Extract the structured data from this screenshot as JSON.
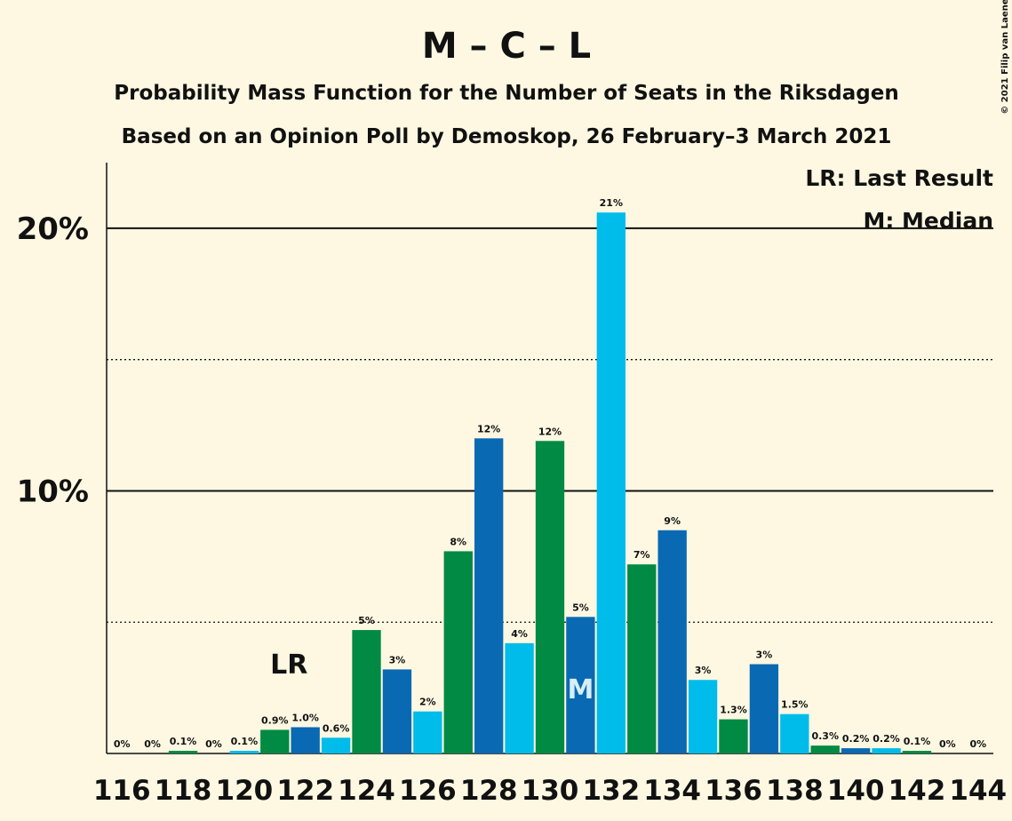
{
  "chart_data": {
    "type": "bar",
    "title": "M – C – L",
    "subtitle": "Probability Mass Function for the Number of Seats in the Riksdagen",
    "subtitle2": "Based on an Opinion Poll by Demoskop, 26 February–3 March 2021",
    "copyright": "© 2021 Filip van Laenen",
    "categories": [
      "116",
      null,
      "118",
      null,
      "120",
      null,
      "122",
      null,
      "124",
      null,
      "126",
      null,
      "128",
      null,
      "130",
      null,
      "132",
      null,
      "134",
      null,
      "136",
      null,
      "138",
      null,
      "140",
      null,
      "142",
      null,
      "144"
    ],
    "values": [
      0,
      0,
      0.1,
      0,
      0.1,
      0.9,
      1.0,
      0.6,
      4.7,
      3.2,
      1.6,
      7.7,
      12.0,
      4.2,
      11.9,
      5.2,
      20.6,
      7.2,
      8.5,
      2.8,
      1.3,
      3.4,
      1.5,
      0.3,
      0.2,
      0.2,
      0.1,
      0,
      0
    ],
    "value_labels": [
      "0%",
      "0%",
      "0.1%",
      "0%",
      "0.1%",
      "0.9%",
      "1.0%",
      "0.6%",
      "5%",
      "3%",
      "2%",
      "8%",
      "12%",
      "4%",
      "12%",
      "5%",
      "21%",
      "7%",
      "9%",
      "3%",
      "1.3%",
      "3%",
      "1.5%",
      "0.3%",
      "0.2%",
      "0.2%",
      "0.1%",
      "0%",
      "0%"
    ],
    "colors": [
      "#0a69b3",
      "#00bceb",
      "#008a43"
    ],
    "ylim": [
      0,
      22.5
    ],
    "yticks": [
      {
        "value": 10,
        "label": "10%"
      },
      {
        "value": 20,
        "label": "20%"
      }
    ],
    "minor_yticks": [
      5,
      15
    ],
    "annotations": [
      {
        "text": "LR",
        "category": 5
      },
      {
        "text": "M",
        "category": 15
      }
    ],
    "legend": [
      "LR: Last Result",
      "M: Median"
    ]
  }
}
